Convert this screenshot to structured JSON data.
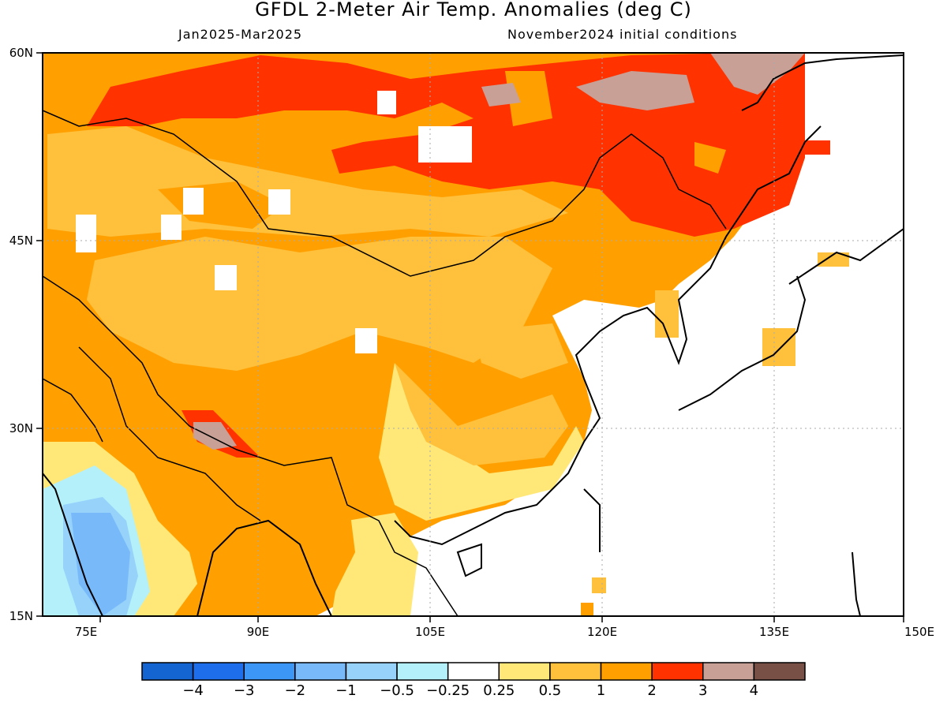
{
  "header": {
    "title": "GFDL 2-Meter Air Temp. Anomalies (deg C)",
    "period": "Jan2025-Mar2025",
    "initial_conditions": "November2024 initial conditions"
  },
  "axes": {
    "lat_labels": [
      "60N",
      "45N",
      "30N",
      "15N"
    ],
    "lon_labels": [
      "75E",
      "90E",
      "105E",
      "120E",
      "135E",
      "150E"
    ]
  },
  "legend": {
    "labels": [
      "-4",
      "-3",
      "-2",
      "-1",
      "-0.5",
      "-0.25",
      "0.25",
      "0.5",
      "1",
      "2",
      "3",
      "4"
    ],
    "colors": [
      "#1464d2",
      "#1e6eeb",
      "#3c96f5",
      "#78b9fa",
      "#96d2fa",
      "#b4f0fa",
      "#ffffff",
      "#ffe878",
      "#ffc03c",
      "#ffa000",
      "#ff3200",
      "#c8a096",
      "#785046"
    ]
  }
}
